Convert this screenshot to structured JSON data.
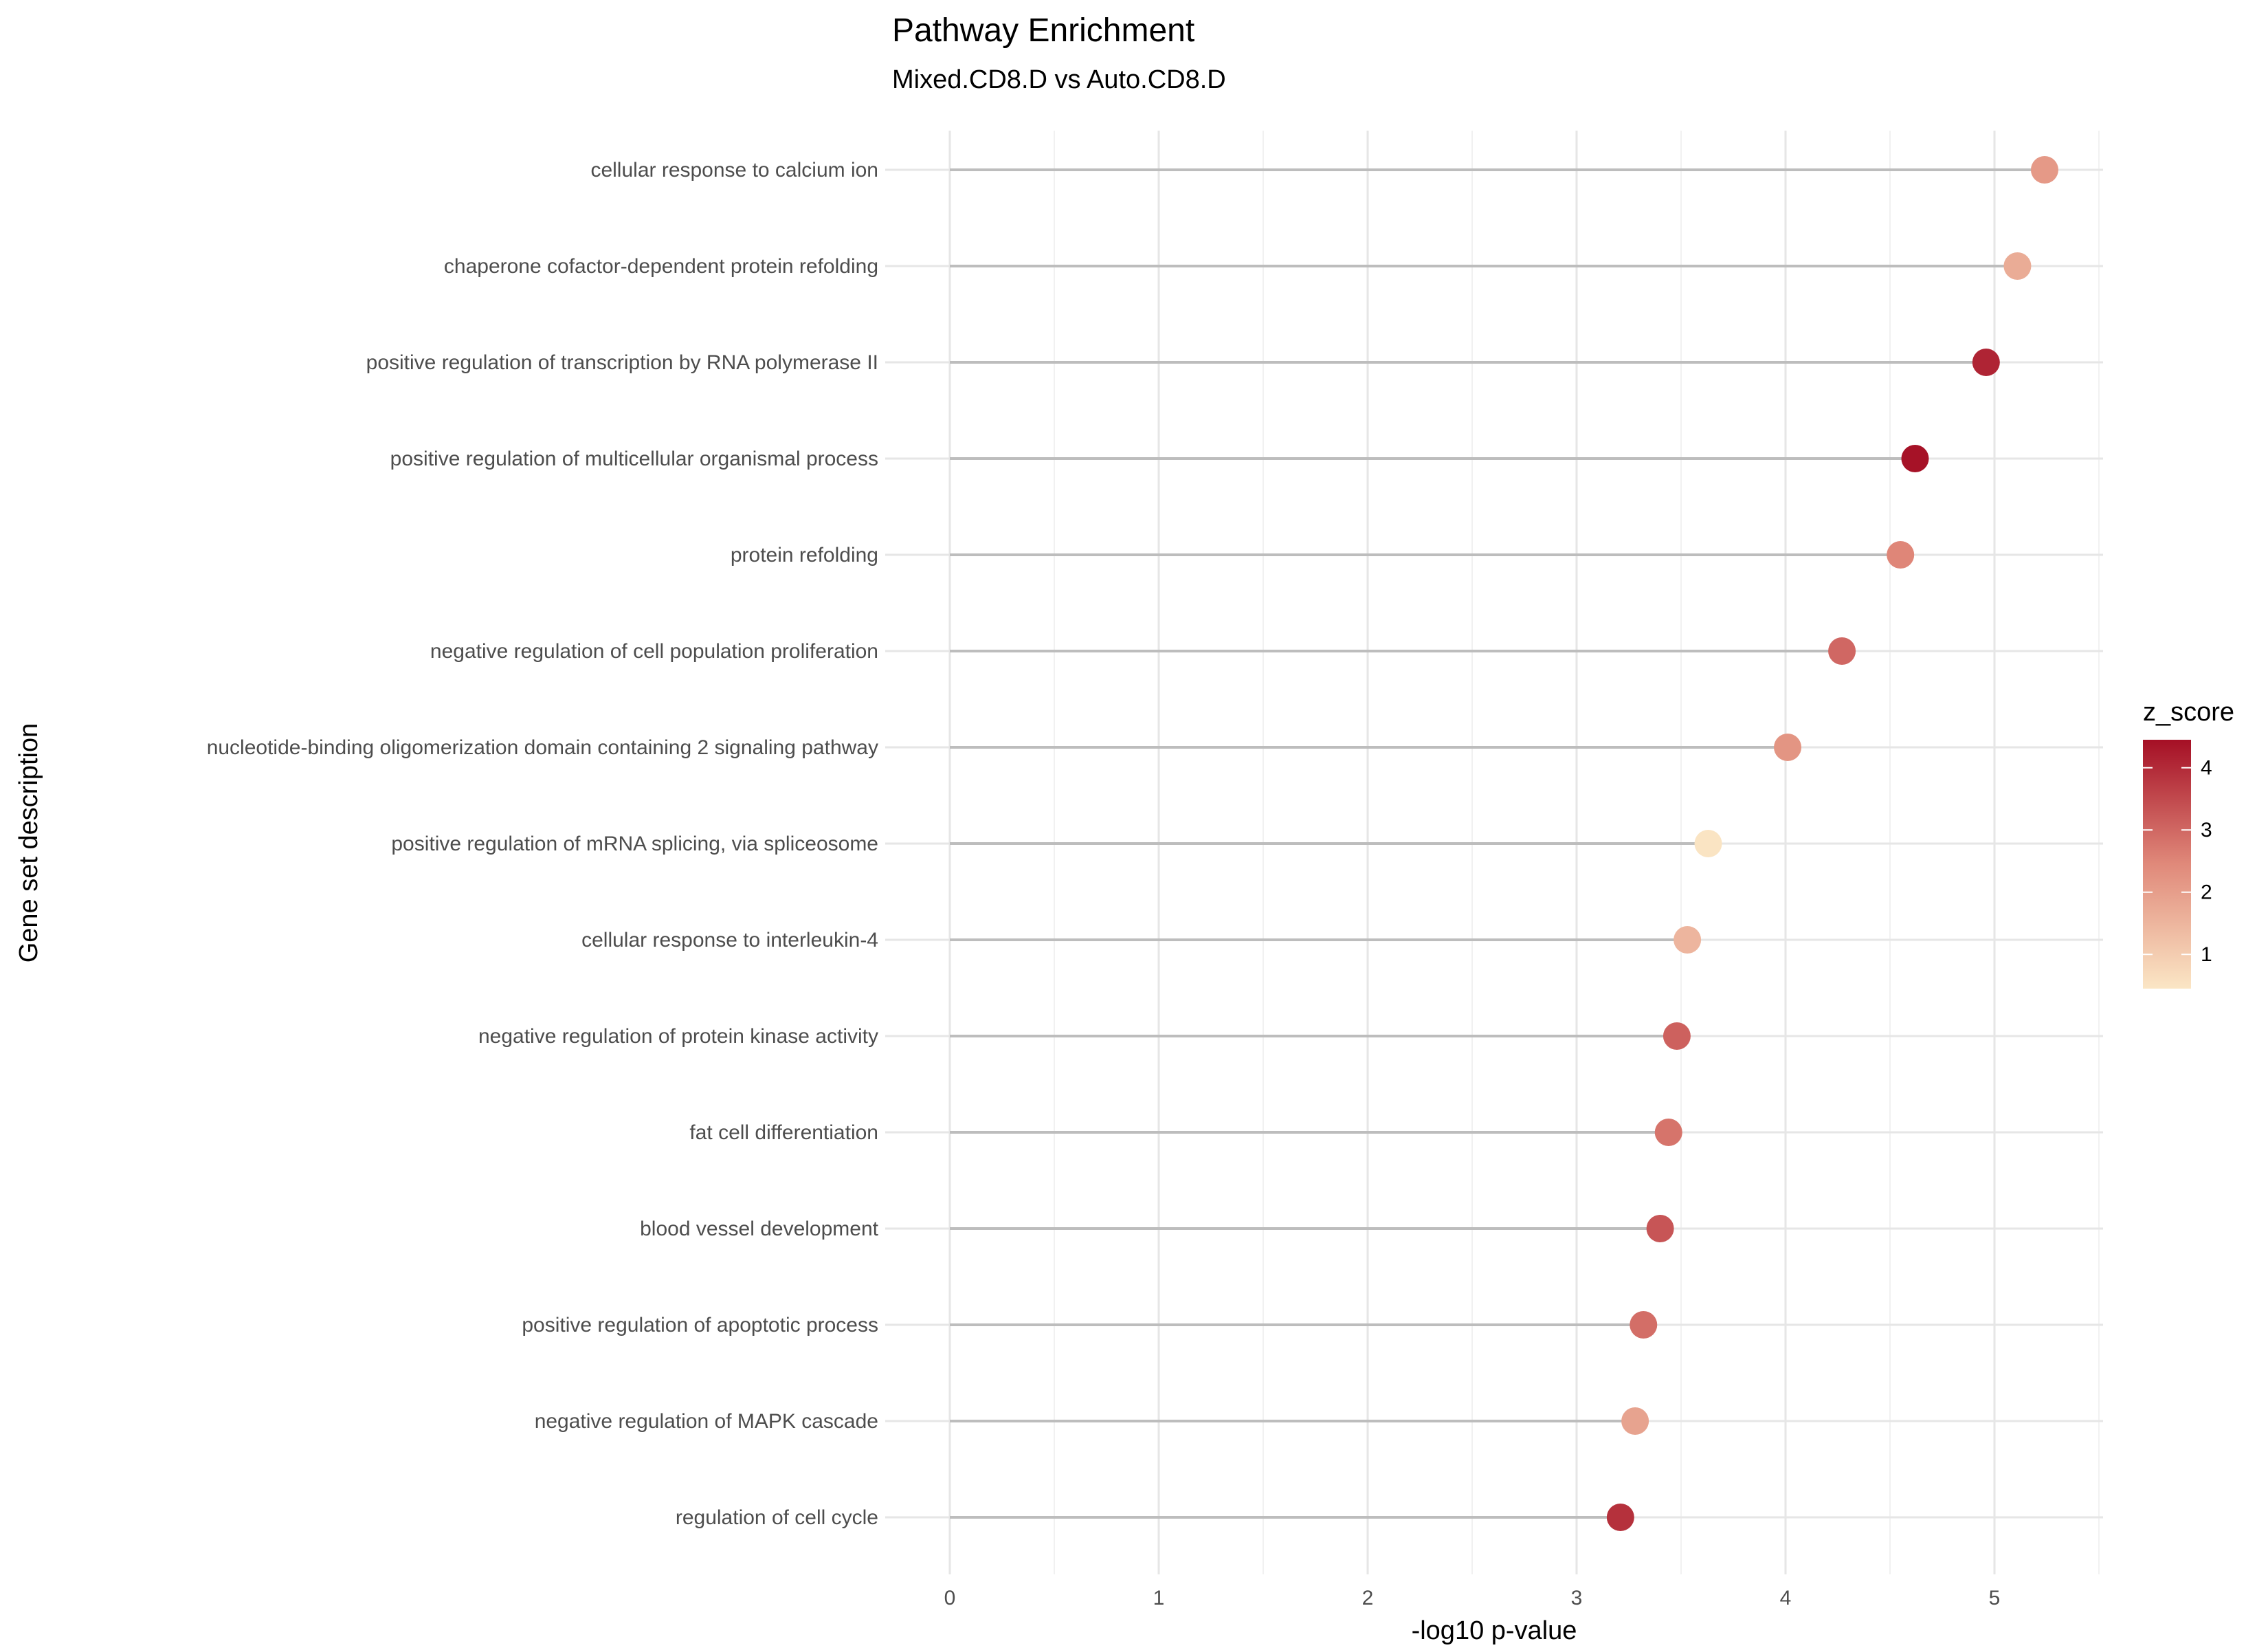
{
  "chart_data": {
    "type": "lollipop",
    "title": "Pathway Enrichment",
    "subtitle": "Mixed.CD8.D vs Auto.CD8.D",
    "xlabel": "-log10 p-value",
    "ylabel": "Gene set description",
    "xlim": [
      0,
      5.5
    ],
    "xticks": [
      "0",
      "1",
      "2",
      "3",
      "4",
      "5"
    ],
    "grid": true,
    "legend": {
      "title": "z_score",
      "placement": "right",
      "range": [
        0.45,
        4.45
      ],
      "ticks": [
        "1",
        "2",
        "3",
        "4"
      ],
      "color_low": "#fbe6c5",
      "color_high": "#a50f25"
    },
    "segment_color": "#bdbdbd",
    "categories": [
      "cellular response to calcium ion",
      "chaperone cofactor-dependent protein refolding",
      "positive regulation of transcription by RNA polymerase II",
      "positive regulation of multicellular organismal process",
      "protein refolding",
      "negative regulation of cell population proliferation",
      "nucleotide-binding oligomerization domain containing 2 signaling pathway",
      "positive regulation of mRNA splicing, via spliceosome",
      "cellular response to interleukin-4",
      "negative regulation of protein kinase activity",
      "fat cell differentiation",
      "blood vessel development",
      "positive regulation of apoptotic process",
      "negative regulation of MAPK cascade",
      "regulation of cell cycle"
    ],
    "values": [
      5.24,
      5.11,
      4.96,
      4.62,
      4.55,
      4.27,
      4.01,
      3.63,
      3.53,
      3.48,
      3.44,
      3.4,
      3.32,
      3.28,
      3.21
    ],
    "z_score": [
      2.1,
      1.7,
      4.1,
      4.4,
      2.5,
      3.0,
      2.2,
      0.5,
      1.5,
      3.1,
      2.8,
      3.3,
      2.9,
      1.9,
      3.9
    ]
  }
}
